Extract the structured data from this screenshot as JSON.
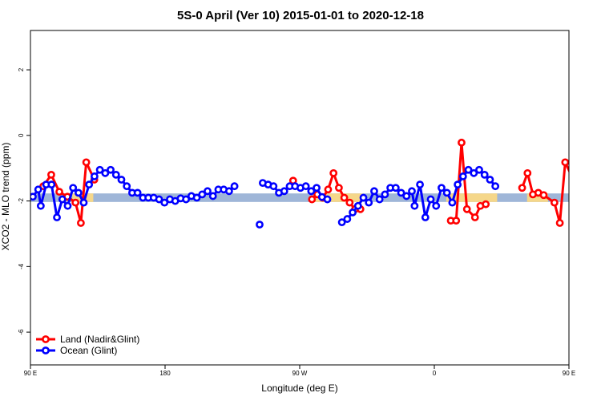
{
  "chart_data": {
    "type": "line",
    "title": "5S-0 April (Ver 10)   2015-01-01 to 2020-12-18",
    "xlabel": "Longitude (deg E)",
    "ylabel": "XCO2 - MLO trend (ppm)",
    "xlim": [
      90,
      450
    ],
    "ylim": [
      -7,
      3.2
    ],
    "x_ticks": [
      {
        "value": 90,
        "label": "90 E"
      },
      {
        "value": 180,
        "label": "180"
      },
      {
        "value": 270,
        "label": "90 W"
      },
      {
        "value": 360,
        "label": "0"
      },
      {
        "value": 450,
        "label": "90 E"
      },
      {
        "value": 540,
        "label": "180"
      }
    ],
    "y_ticks": [
      {
        "value": -6,
        "label": "-6"
      },
      {
        "value": -4,
        "label": "-4"
      },
      {
        "value": -2,
        "label": "-2"
      },
      {
        "value": 0,
        "label": "0"
      },
      {
        "value": 2,
        "label": "2"
      }
    ],
    "grid": false,
    "legend_position": "bottom-left",
    "bands": [
      {
        "name": "ocean-band",
        "color": "#9fb6d8",
        "x_start": 90,
        "x_end": 450,
        "y_low": -2.03,
        "y_high": -1.77
      },
      {
        "name": "land-band-1",
        "color": "#f5d78a",
        "x_start": 118,
        "x_end": 132,
        "y_low": -2.03,
        "y_high": -1.77
      },
      {
        "name": "land-band-2",
        "color": "#f5d78a",
        "x_start": 280,
        "x_end": 312,
        "y_low": -2.03,
        "y_high": -1.77
      },
      {
        "name": "land-band-3",
        "color": "#f5d78a",
        "x_start": 368,
        "x_end": 402,
        "y_low": -2.03,
        "y_high": -1.77
      },
      {
        "name": "land-band-4",
        "color": "#f5d78a",
        "x_start": 422,
        "x_end": 436,
        "y_low": -2.03,
        "y_high": -1.77
      }
    ],
    "series": [
      {
        "name": "Land (Nadir&Glint)",
        "color": "#ff0000",
        "segments": [
          [
            [
              98.6,
              -1.55
            ],
            [
              103.9,
              -1.2
            ],
            [
              109.3,
              -1.72
            ],
            [
              114.7,
              -1.87
            ],
            [
              120.1,
              -2.05
            ],
            [
              123.7,
              -2.67
            ],
            [
              127.3,
              -0.82
            ],
            [
              132.7,
              -1.35
            ]
          ],
          [
            [
              265.6,
              -1.38
            ]
          ],
          [
            [
              278.2,
              -1.95
            ],
            [
              281.8,
              -1.8
            ],
            [
              285.4,
              -1.9
            ],
            [
              289.0,
              -1.65
            ],
            [
              292.6,
              -1.15
            ],
            [
              296.2,
              -1.6
            ],
            [
              299.8,
              -1.9
            ],
            [
              303.4,
              -2.05
            ],
            [
              307.0,
              -2.25
            ],
            [
              310.6,
              -2.25
            ]
          ],
          [
            [
              371.0,
              -2.6
            ],
            [
              374.6,
              -2.6
            ],
            [
              378.2,
              -0.22
            ],
            [
              381.8,
              -2.25
            ],
            [
              387.2,
              -2.5
            ],
            [
              390.8,
              -2.15
            ],
            [
              394.4,
              -2.1
            ]
          ],
          [
            [
              418.7,
              -1.6
            ],
            [
              422.3,
              -1.15
            ],
            [
              425.9,
              -1.8
            ],
            [
              429.5,
              -1.75
            ],
            [
              433.1,
              -1.82
            ],
            [
              440.3,
              -2.05
            ],
            [
              443.9,
              -2.67
            ],
            [
              447.5,
              -0.82
            ],
            [
              452.9,
              -1.35
            ]
          ]
        ]
      },
      {
        "name": "Ocean (Glint)",
        "color": "#0000ff",
        "segments": [
          [
            [
              91.6,
              -1.87
            ],
            [
              95.2,
              -1.65
            ],
            [
              96.9,
              -2.15
            ],
            [
              100.5,
              -1.5
            ],
            [
              104.1,
              -1.5
            ],
            [
              107.7,
              -2.5
            ],
            [
              111.3,
              -1.95
            ],
            [
              114.9,
              -2.15
            ],
            [
              118.5,
              -1.6
            ],
            [
              122.1,
              -1.75
            ],
            [
              125.6,
              -2.05
            ],
            [
              129.2,
              -1.5
            ],
            [
              132.8,
              -1.25
            ],
            [
              136.4,
              -1.05
            ],
            [
              140.0,
              -1.15
            ],
            [
              143.6,
              -1.05
            ],
            [
              147.2,
              -1.2
            ],
            [
              150.8,
              -1.35
            ],
            [
              154.4,
              -1.55
            ],
            [
              158.0,
              -1.75
            ],
            [
              161.6,
              -1.75
            ],
            [
              165.2,
              -1.9
            ],
            [
              168.8,
              -1.9
            ],
            [
              172.4,
              -1.9
            ],
            [
              176.0,
              -1.95
            ],
            [
              179.6,
              -2.05
            ],
            [
              183.2,
              -1.95
            ],
            [
              186.8,
              -2.0
            ],
            [
              190.4,
              -1.92
            ],
            [
              194.0,
              -1.95
            ],
            [
              197.6,
              -1.85
            ],
            [
              201.2,
              -1.9
            ],
            [
              204.8,
              -1.8
            ],
            [
              208.4,
              -1.7
            ],
            [
              212.0,
              -1.85
            ],
            [
              215.6,
              -1.65
            ],
            [
              219.2,
              -1.65
            ],
            [
              222.8,
              -1.7
            ],
            [
              226.4,
              -1.55
            ]
          ],
          [
            [
              243.2,
              -2.72
            ]
          ],
          [
            [
              245.3,
              -1.45
            ],
            [
              248.9,
              -1.5
            ],
            [
              252.5,
              -1.55
            ],
            [
              256.1,
              -1.75
            ],
            [
              259.7,
              -1.7
            ],
            [
              263.3,
              -1.55
            ],
            [
              266.9,
              -1.55
            ],
            [
              270.5,
              -1.6
            ],
            [
              274.1,
              -1.55
            ],
            [
              277.7,
              -1.7
            ],
            [
              281.3,
              -1.6
            ],
            [
              284.9,
              -1.88
            ],
            [
              288.5,
              -1.95
            ]
          ],
          [
            [
              298.2,
              -2.65
            ],
            [
              301.8,
              -2.55
            ],
            [
              305.4,
              -2.35
            ],
            [
              309.0,
              -2.15
            ],
            [
              312.6,
              -1.9
            ],
            [
              316.2,
              -2.05
            ],
            [
              319.8,
              -1.7
            ],
            [
              323.4,
              -1.95
            ],
            [
              327.0,
              -1.8
            ],
            [
              330.6,
              -1.6
            ],
            [
              334.2,
              -1.6
            ],
            [
              337.8,
              -1.75
            ],
            [
              341.4,
              -1.85
            ],
            [
              345.0,
              -1.7
            ],
            [
              346.8,
              -2.15
            ],
            [
              350.4,
              -1.5
            ],
            [
              354.0,
              -2.5
            ],
            [
              357.6,
              -1.95
            ],
            [
              361.2,
              -2.15
            ],
            [
              364.8,
              -1.6
            ],
            [
              368.4,
              -1.75
            ],
            [
              372.0,
              -2.05
            ],
            [
              375.6,
              -1.5
            ],
            [
              379.2,
              -1.25
            ],
            [
              382.8,
              -1.05
            ],
            [
              386.4,
              -1.15
            ],
            [
              390.0,
              -1.05
            ],
            [
              393.6,
              -1.2
            ],
            [
              397.2,
              -1.35
            ],
            [
              400.8,
              -1.55
            ]
          ]
        ]
      }
    ]
  }
}
